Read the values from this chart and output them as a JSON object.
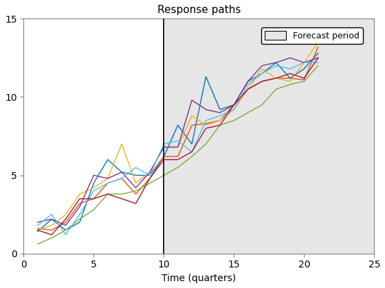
{
  "title": "Response paths",
  "xlabel": "Time (quarters)",
  "xlim": [
    0,
    25
  ],
  "ylim": [
    0,
    15
  ],
  "xticks": [
    0,
    5,
    10,
    15,
    20,
    25
  ],
  "yticks": [
    0,
    5,
    10,
    15
  ],
  "forecast_start": 10,
  "forecast_end": 25,
  "forecast_color": "#e6e6e6",
  "legend_label": "Forecast period",
  "background_color": "#ffffff",
  "vline_color": "#000000",
  "lines": [
    {
      "color": "#0072bd",
      "x": [
        1,
        2,
        3,
        4,
        5,
        6,
        7,
        8,
        9,
        10,
        11,
        12,
        13,
        14,
        15,
        16,
        17,
        18,
        19,
        20,
        21
      ],
      "y": [
        1.4,
        2.2,
        1.5,
        2.0,
        4.5,
        6.0,
        5.2,
        5.0,
        5.0,
        6.2,
        8.2,
        7.0,
        11.3,
        9.2,
        9.5,
        11.0,
        11.5,
        12.2,
        11.2,
        11.8,
        12.8
      ]
    },
    {
      "color": "#d95319",
      "x": [
        1,
        2,
        3,
        4,
        5,
        6,
        7,
        8,
        9,
        10,
        11,
        12,
        13,
        14,
        15,
        16,
        17,
        18,
        19,
        20,
        21
      ],
      "y": [
        1.6,
        1.5,
        2.0,
        3.2,
        3.5,
        4.5,
        4.8,
        3.8,
        4.8,
        6.2,
        6.2,
        8.2,
        8.3,
        8.5,
        9.5,
        10.5,
        11.0,
        11.2,
        11.2,
        11.1,
        13.2
      ]
    },
    {
      "color": "#edb120",
      "x": [
        1,
        2,
        3,
        4,
        5,
        6,
        7,
        8,
        9,
        10,
        11,
        12,
        13,
        14,
        15,
        16,
        17,
        18,
        19,
        20,
        21
      ],
      "y": [
        1.5,
        1.8,
        2.5,
        3.8,
        4.2,
        4.8,
        7.0,
        4.5,
        5.2,
        6.8,
        6.8,
        8.8,
        8.2,
        8.5,
        9.2,
        10.5,
        11.8,
        11.2,
        11.0,
        12.2,
        13.5
      ]
    },
    {
      "color": "#77ac30",
      "x": [
        1,
        2,
        3,
        4,
        5,
        6,
        7,
        8,
        9,
        10,
        11,
        12,
        13,
        14,
        15,
        16,
        17,
        18,
        19,
        20,
        21
      ],
      "y": [
        0.6,
        1.0,
        1.5,
        2.2,
        2.8,
        3.8,
        3.8,
        4.0,
        4.5,
        5.0,
        5.5,
        6.2,
        7.0,
        8.2,
        8.5,
        9.0,
        9.5,
        10.5,
        10.8,
        11.0,
        12.0
      ]
    },
    {
      "color": "#7e2f8e",
      "x": [
        1,
        2,
        3,
        4,
        5,
        6,
        7,
        8,
        9,
        10,
        11,
        12,
        13,
        14,
        15,
        16,
        17,
        18,
        19,
        20,
        21
      ],
      "y": [
        2.0,
        2.2,
        1.8,
        3.0,
        5.0,
        4.8,
        5.2,
        4.2,
        5.2,
        6.8,
        6.8,
        9.8,
        9.2,
        9.0,
        9.5,
        11.0,
        12.0,
        12.2,
        12.5,
        12.2,
        12.5
      ]
    },
    {
      "color": "#4dbeee",
      "x": [
        1,
        2,
        3,
        4,
        5,
        6,
        7,
        8,
        9,
        10,
        11,
        12,
        13,
        14,
        15,
        16,
        17,
        18,
        19,
        20,
        21
      ],
      "y": [
        1.8,
        2.5,
        1.2,
        2.5,
        4.0,
        4.5,
        4.8,
        5.5,
        5.0,
        7.0,
        7.2,
        6.5,
        8.5,
        8.8,
        9.2,
        10.8,
        11.5,
        12.0,
        11.8,
        12.2,
        12.2
      ]
    },
    {
      "color": "#a2142f",
      "x": [
        1,
        2,
        3,
        4,
        5,
        6,
        7,
        8,
        9,
        10,
        11,
        12,
        13,
        14,
        15,
        16,
        17,
        18,
        19,
        20,
        21
      ],
      "y": [
        1.5,
        1.2,
        2.2,
        3.5,
        3.5,
        3.8,
        3.5,
        3.2,
        4.8,
        6.0,
        6.0,
        6.5,
        8.0,
        8.2,
        9.5,
        10.5,
        11.0,
        11.2,
        11.5,
        11.2,
        12.5
      ]
    }
  ]
}
